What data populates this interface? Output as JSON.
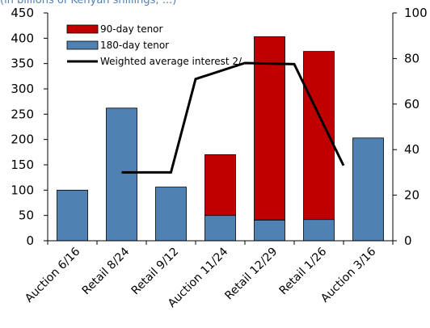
{
  "chart_data": {
    "type": "bar",
    "title": "",
    "header_fragment": "(in billions of Kenyan shillings; ...)",
    "categories": [
      "Auction 6/16",
      "Retail 8/24",
      "Retail 9/12",
      "Auction 11/24",
      "Retail 12/29",
      "Retail 1/26",
      "Auction 3/16"
    ],
    "stacked": true,
    "series": [
      {
        "name": "180-day tenor",
        "type": "bar",
        "axis": "left",
        "color": "#4f81b2",
        "values": [
          100,
          262,
          106,
          50,
          41,
          42,
          203
        ]
      },
      {
        "name": "90-day tenor",
        "type": "bar",
        "axis": "left",
        "color": "#c00000",
        "values": [
          0,
          0,
          0,
          120,
          362,
          332,
          0
        ]
      },
      {
        "name": "Weighted average interest 2/",
        "type": "line",
        "axis": "right",
        "color": "#000000",
        "values": [
          null,
          30,
          30,
          71,
          78,
          77.5,
          33
        ],
        "line_x": [
          0.5,
          null,
          2.5,
          3,
          4,
          5,
          6
        ]
      }
    ],
    "y_left": {
      "min": 0,
      "max": 450,
      "ticks": [
        0,
        50,
        100,
        150,
        200,
        250,
        300,
        350,
        400,
        450
      ]
    },
    "y_right": {
      "min": 0,
      "max": 100,
      "ticks": [
        0,
        20,
        40,
        60,
        80,
        100
      ]
    },
    "legend": {
      "position": "top-left",
      "labels": [
        "90-day tenor",
        "180-day tenor",
        "Weighted average interest 2/"
      ]
    },
    "grid": false
  }
}
